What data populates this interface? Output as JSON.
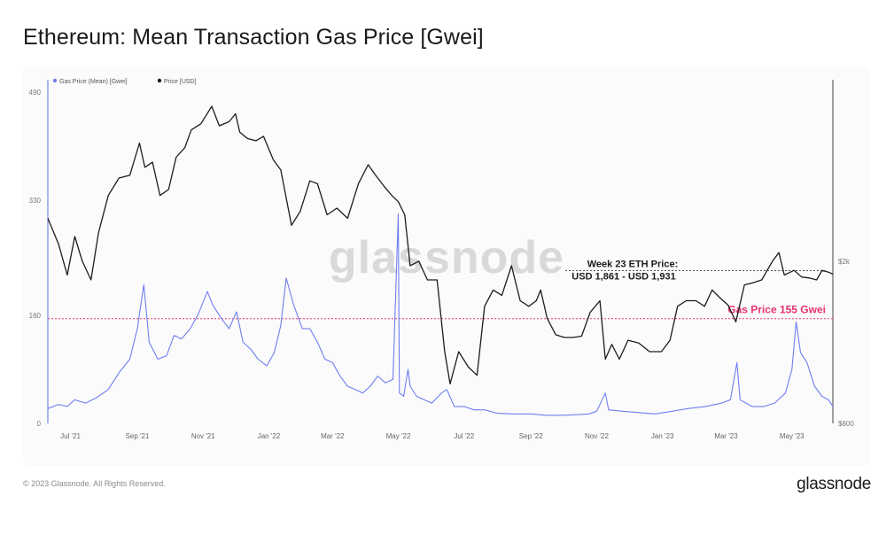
{
  "title": "Ethereum: Mean Transaction Gas Price [Gwei]",
  "footer": {
    "copyright": "© 2023 Glassnode. All Rights Reserved.",
    "brand": "glassnode"
  },
  "watermark": "glassnode",
  "colors": {
    "gas": "#6e7ef0",
    "price": "#1c1c1c",
    "threshold": "#e8336e",
    "annotation_text": "#1c1c1c"
  },
  "chart_data": {
    "type": "line",
    "legend": [
      {
        "name": "Gas Price (Mean) [Gwei]",
        "color": "#6e7ef0"
      },
      {
        "name": "Price [USD]",
        "color": "#1c1c1c"
      }
    ],
    "legend_position": "top-left",
    "x_ticks": [
      "Jul '21",
      "Sep '21",
      "Nov '21",
      "Jan '22",
      "Mar '22",
      "May '22",
      "Jul '22",
      "Sep '22",
      "Nov '22",
      "Jan '23",
      "Mar '23",
      "May '23"
    ],
    "x_tick_dates": [
      "2021-07-01",
      "2021-09-01",
      "2021-11-01",
      "2022-01-01",
      "2022-03-01",
      "2022-05-01",
      "2022-07-01",
      "2022-09-01",
      "2022-11-01",
      "2023-01-01",
      "2023-03-01",
      "2023-05-01"
    ],
    "x_range": [
      "2021-06-10",
      "2023-06-08"
    ],
    "y_left": {
      "label": "Gas Price (Mean) [Gwei]",
      "ticks": [
        0,
        160,
        330,
        490
      ],
      "tick_labels": [
        "0",
        "160",
        "330",
        "490"
      ],
      "range": [
        0,
        490
      ]
    },
    "y_right": {
      "label": "Price [USD]",
      "scale": "log",
      "ticks": [
        800,
        2000
      ],
      "tick_labels": [
        "$800",
        "$2k"
      ],
      "range": [
        800,
        5200
      ]
    },
    "grid": false,
    "threshold": {
      "value": 155,
      "label": "Gas Price 155 Gwei"
    },
    "annotation": {
      "line1": "Week 23 ETH Price:",
      "line2": "USD 1,861 - USD 1,931",
      "value_low": 1861,
      "value_high": 1931
    },
    "series": [
      {
        "name": "Price [USD]",
        "axis": "right",
        "points": [
          [
            "2021-06-10",
            2550
          ],
          [
            "2021-06-20",
            2200
          ],
          [
            "2021-06-28",
            1850
          ],
          [
            "2021-07-05",
            2300
          ],
          [
            "2021-07-12",
            2000
          ],
          [
            "2021-07-20",
            1800
          ],
          [
            "2021-07-27",
            2350
          ],
          [
            "2021-08-05",
            2900
          ],
          [
            "2021-08-15",
            3200
          ],
          [
            "2021-08-25",
            3250
          ],
          [
            "2021-09-03",
            3900
          ],
          [
            "2021-09-08",
            3400
          ],
          [
            "2021-09-15",
            3500
          ],
          [
            "2021-09-22",
            2900
          ],
          [
            "2021-09-30",
            3000
          ],
          [
            "2021-10-07",
            3600
          ],
          [
            "2021-10-15",
            3800
          ],
          [
            "2021-10-21",
            4200
          ],
          [
            "2021-10-30",
            4350
          ],
          [
            "2021-11-09",
            4800
          ],
          [
            "2021-11-16",
            4300
          ],
          [
            "2021-11-25",
            4400
          ],
          [
            "2021-12-01",
            4600
          ],
          [
            "2021-12-05",
            4150
          ],
          [
            "2021-12-12",
            4000
          ],
          [
            "2021-12-20",
            3950
          ],
          [
            "2021-12-27",
            4050
          ],
          [
            "2022-01-05",
            3550
          ],
          [
            "2022-01-12",
            3350
          ],
          [
            "2022-01-22",
            2450
          ],
          [
            "2022-01-30",
            2650
          ],
          [
            "2022-02-08",
            3150
          ],
          [
            "2022-02-15",
            3100
          ],
          [
            "2022-02-24",
            2600
          ],
          [
            "2022-03-05",
            2700
          ],
          [
            "2022-03-15",
            2550
          ],
          [
            "2022-03-25",
            3100
          ],
          [
            "2022-04-03",
            3450
          ],
          [
            "2022-04-10",
            3250
          ],
          [
            "2022-04-18",
            3050
          ],
          [
            "2022-04-25",
            2900
          ],
          [
            "2022-05-01",
            2800
          ],
          [
            "2022-05-07",
            2600
          ],
          [
            "2022-05-12",
            1950
          ],
          [
            "2022-05-20",
            2000
          ],
          [
            "2022-05-28",
            1800
          ],
          [
            "2022-06-06",
            1800
          ],
          [
            "2022-06-13",
            1200
          ],
          [
            "2022-06-18",
            1000
          ],
          [
            "2022-06-26",
            1200
          ],
          [
            "2022-07-05",
            1100
          ],
          [
            "2022-07-13",
            1050
          ],
          [
            "2022-07-20",
            1550
          ],
          [
            "2022-07-28",
            1700
          ],
          [
            "2022-08-05",
            1650
          ],
          [
            "2022-08-14",
            1950
          ],
          [
            "2022-08-22",
            1600
          ],
          [
            "2022-08-30",
            1550
          ],
          [
            "2022-09-06",
            1600
          ],
          [
            "2022-09-10",
            1700
          ],
          [
            "2022-09-16",
            1450
          ],
          [
            "2022-09-24",
            1320
          ],
          [
            "2022-10-02",
            1300
          ],
          [
            "2022-10-10",
            1300
          ],
          [
            "2022-10-18",
            1310
          ],
          [
            "2022-10-26",
            1500
          ],
          [
            "2022-11-04",
            1600
          ],
          [
            "2022-11-09",
            1150
          ],
          [
            "2022-11-15",
            1250
          ],
          [
            "2022-11-22",
            1150
          ],
          [
            "2022-11-30",
            1280
          ],
          [
            "2022-12-10",
            1260
          ],
          [
            "2022-12-20",
            1200
          ],
          [
            "2022-12-31",
            1200
          ],
          [
            "2023-01-08",
            1280
          ],
          [
            "2023-01-15",
            1550
          ],
          [
            "2023-01-23",
            1600
          ],
          [
            "2023-02-01",
            1600
          ],
          [
            "2023-02-09",
            1550
          ],
          [
            "2023-02-16",
            1700
          ],
          [
            "2023-02-24",
            1620
          ],
          [
            "2023-03-03",
            1560
          ],
          [
            "2023-03-10",
            1420
          ],
          [
            "2023-03-18",
            1750
          ],
          [
            "2023-03-26",
            1770
          ],
          [
            "2023-04-03",
            1800
          ],
          [
            "2023-04-13",
            2000
          ],
          [
            "2023-04-19",
            2100
          ],
          [
            "2023-04-24",
            1850
          ],
          [
            "2023-05-03",
            1900
          ],
          [
            "2023-05-10",
            1830
          ],
          [
            "2023-05-17",
            1820
          ],
          [
            "2023-05-24",
            1800
          ],
          [
            "2023-05-29",
            1900
          ],
          [
            "2023-06-04",
            1880
          ],
          [
            "2023-06-08",
            1860
          ]
        ]
      },
      {
        "name": "Gas Price (Mean) [Gwei]",
        "axis": "left",
        "points": [
          [
            "2021-06-10",
            22
          ],
          [
            "2021-06-20",
            28
          ],
          [
            "2021-06-28",
            25
          ],
          [
            "2021-07-05",
            35
          ],
          [
            "2021-07-15",
            30
          ],
          [
            "2021-07-25",
            38
          ],
          [
            "2021-08-05",
            50
          ],
          [
            "2021-08-15",
            75
          ],
          [
            "2021-08-25",
            95
          ],
          [
            "2021-09-01",
            140
          ],
          [
            "2021-09-07",
            205
          ],
          [
            "2021-09-12",
            120
          ],
          [
            "2021-09-20",
            95
          ],
          [
            "2021-09-28",
            100
          ],
          [
            "2021-10-05",
            130
          ],
          [
            "2021-10-12",
            125
          ],
          [
            "2021-10-20",
            140
          ],
          [
            "2021-10-27",
            160
          ],
          [
            "2021-11-05",
            195
          ],
          [
            "2021-11-10",
            175
          ],
          [
            "2021-11-18",
            155
          ],
          [
            "2021-11-25",
            140
          ],
          [
            "2021-12-02",
            165
          ],
          [
            "2021-12-08",
            120
          ],
          [
            "2021-12-15",
            110
          ],
          [
            "2021-12-22",
            95
          ],
          [
            "2021-12-30",
            85
          ],
          [
            "2022-01-06",
            105
          ],
          [
            "2022-01-12",
            145
          ],
          [
            "2022-01-17",
            215
          ],
          [
            "2022-01-24",
            175
          ],
          [
            "2022-02-01",
            140
          ],
          [
            "2022-02-08",
            140
          ],
          [
            "2022-02-15",
            120
          ],
          [
            "2022-02-22",
            95
          ],
          [
            "2022-03-01",
            90
          ],
          [
            "2022-03-08",
            70
          ],
          [
            "2022-03-15",
            55
          ],
          [
            "2022-03-22",
            50
          ],
          [
            "2022-03-29",
            45
          ],
          [
            "2022-04-05",
            55
          ],
          [
            "2022-04-12",
            70
          ],
          [
            "2022-04-19",
            60
          ],
          [
            "2022-04-26",
            65
          ],
          [
            "2022-05-01",
            310
          ],
          [
            "2022-05-02",
            45
          ],
          [
            "2022-05-06",
            40
          ],
          [
            "2022-05-10",
            80
          ],
          [
            "2022-05-12",
            55
          ],
          [
            "2022-05-18",
            40
          ],
          [
            "2022-05-25",
            35
          ],
          [
            "2022-06-01",
            30
          ],
          [
            "2022-06-10",
            45
          ],
          [
            "2022-06-15",
            50
          ],
          [
            "2022-06-22",
            25
          ],
          [
            "2022-07-01",
            25
          ],
          [
            "2022-07-10",
            20
          ],
          [
            "2022-07-20",
            20
          ],
          [
            "2022-08-01",
            15
          ],
          [
            "2022-08-15",
            14
          ],
          [
            "2022-09-01",
            14
          ],
          [
            "2022-09-15",
            12
          ],
          [
            "2022-10-01",
            12
          ],
          [
            "2022-10-15",
            13
          ],
          [
            "2022-10-25",
            14
          ],
          [
            "2022-11-01",
            18
          ],
          [
            "2022-11-09",
            45
          ],
          [
            "2022-11-12",
            20
          ],
          [
            "2022-11-25",
            18
          ],
          [
            "2022-12-10",
            16
          ],
          [
            "2022-12-25",
            14
          ],
          [
            "2023-01-10",
            18
          ],
          [
            "2023-01-25",
            22
          ],
          [
            "2023-02-10",
            25
          ],
          [
            "2023-02-25",
            30
          ],
          [
            "2023-03-05",
            35
          ],
          [
            "2023-03-11",
            90
          ],
          [
            "2023-03-14",
            35
          ],
          [
            "2023-03-25",
            25
          ],
          [
            "2023-04-05",
            25
          ],
          [
            "2023-04-15",
            30
          ],
          [
            "2023-04-25",
            45
          ],
          [
            "2023-05-01",
            80
          ],
          [
            "2023-05-05",
            150
          ],
          [
            "2023-05-09",
            105
          ],
          [
            "2023-05-15",
            90
          ],
          [
            "2023-05-22",
            55
          ],
          [
            "2023-05-29",
            40
          ],
          [
            "2023-06-04",
            35
          ],
          [
            "2023-06-08",
            25
          ]
        ]
      }
    ]
  }
}
